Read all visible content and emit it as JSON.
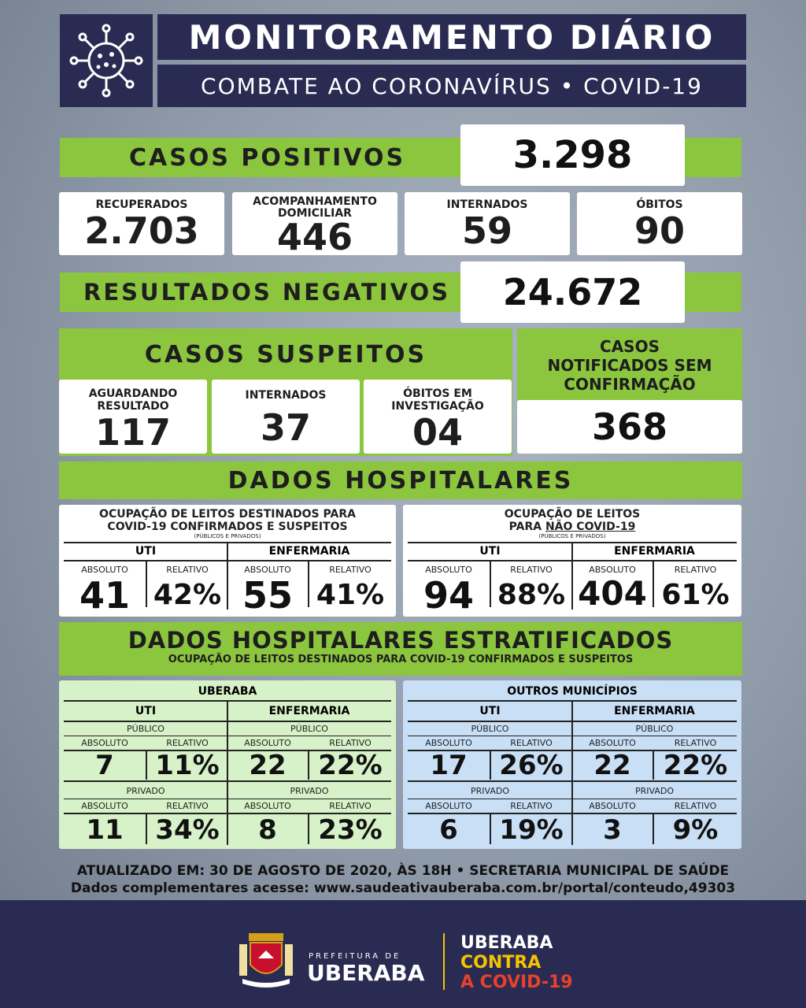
{
  "header": {
    "title": "MONITORAMENTO DIÁRIO",
    "subtitle": "COMBATE AO CORONAVÍRUS • COVID-19",
    "logo_icon": "virus-icon"
  },
  "positivos": {
    "label": "CASOS POSITIVOS",
    "value": "3.298"
  },
  "stats": [
    {
      "label": "RECUPERADOS",
      "value": "2.703"
    },
    {
      "label": "ACOMPANHAMENTO DOMICILIAR",
      "value": "446"
    },
    {
      "label": "INTERNADOS",
      "value": "59"
    },
    {
      "label": "ÓBITOS",
      "value": "90"
    }
  ],
  "negativos": {
    "label": "RESULTADOS NEGATIVOS",
    "value": "24.672"
  },
  "suspeitos": {
    "label": "CASOS SUSPEITOS",
    "items": [
      {
        "label": "AGUARDANDO RESULTADO",
        "value": "117"
      },
      {
        "label": "INTERNADOS",
        "value": "37"
      },
      {
        "label": "ÓBITOS EM INVESTIGAÇÃO",
        "value": "04"
      }
    ]
  },
  "notificados": {
    "label": "CASOS NOTIFICADOS SEM CONFIRMAÇÃO",
    "value": "368"
  },
  "hospitalares": {
    "label": "DADOS HOSPITALARES",
    "covid": {
      "title_a": "OCUPAÇÃO DE LEITOS DESTINADOS PARA",
      "title_b": "COVID-19",
      "title_c": "CONFIRMADOS E SUSPEITOS",
      "note": "(PÚBLICOS E PRIVADOS)",
      "uti": "UTI",
      "enfermaria": "ENFERMARIA",
      "absoluto": "ABSOLUTO",
      "relativo": "RELATIVO",
      "values": [
        "41",
        "42%",
        "55",
        "41%"
      ]
    },
    "nao_covid": {
      "title_a": "OCUPAÇÃO DE LEITOS",
      "title_b": "PARA",
      "title_c": "NÃO COVID-19",
      "note": "(PÚBLICOS E PRIVADOS)",
      "uti": "UTI",
      "enfermaria": "ENFERMARIA",
      "absoluto": "ABSOLUTO",
      "relativo": "RELATIVO",
      "values": [
        "94",
        "88%",
        "404",
        "61%"
      ]
    }
  },
  "estratificados": {
    "title": "DADOS HOSPITALARES ESTRATIFICADOS",
    "subtitle": "OCUPAÇÃO DE LEITOS DESTINADOS PARA COVID-19 CONFIRMADOS E SUSPEITOS",
    "uberaba": {
      "name": "UBERABA",
      "uti": "UTI",
      "enfermaria": "ENFERMARIA",
      "publico": "PÚBLICO",
      "privado": "PRIVADO",
      "absoluto": "ABSOLUTO",
      "relativo": "RELATIVO",
      "publico_values": [
        "7",
        "11%",
        "22",
        "22%"
      ],
      "privado_values": [
        "11",
        "34%",
        "8",
        "23%"
      ]
    },
    "outros": {
      "name": "OUTROS MUNICÍPIOS",
      "uti": "UTI",
      "enfermaria": "ENFERMARIA",
      "publico": "PÚBLICO",
      "privado": "PRIVADO",
      "absoluto": "ABSOLUTO",
      "relativo": "RELATIVO",
      "publico_values": [
        "17",
        "26%",
        "22",
        "22%"
      ],
      "privado_values": [
        "6",
        "19%",
        "3",
        "9%"
      ]
    }
  },
  "update": {
    "line1": "ATUALIZADO EM: 30 DE AGOSTO DE 2020, ÀS 18H • SECRETARIA MUNICIPAL DE SAÚDE",
    "line2": "Dados complementares acesse: www.saudeativauberaba.com.br/portal/conteudo,49303"
  },
  "footer": {
    "prefeitura": "PREFEITURA DE",
    "city": "UBERABA",
    "slogan_1": "UBERABA",
    "slogan_2": "CONTRA",
    "slogan_3": "A COVID-19",
    "colors": {
      "slogan_1": "#ffffff",
      "slogan_2": "#f5c400",
      "slogan_3": "#e8412c"
    }
  }
}
